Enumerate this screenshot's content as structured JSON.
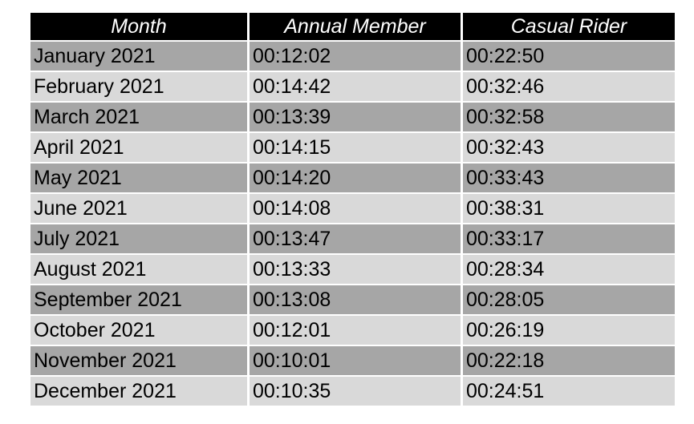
{
  "table": {
    "headers": [
      "Month",
      "Annual Member",
      "Casual Rider"
    ],
    "rows": [
      [
        "January 2021",
        "00:12:02",
        "00:22:50"
      ],
      [
        "February 2021",
        "00:14:42",
        "00:32:46"
      ],
      [
        "March 2021",
        "00:13:39",
        "00:32:58"
      ],
      [
        "April 2021",
        "00:14:15",
        "00:32:43"
      ],
      [
        "May 2021",
        "00:14:20",
        "00:33:43"
      ],
      [
        "June 2021",
        "00:14:08",
        "00:38:31"
      ],
      [
        "July 2021",
        "00:13:47",
        "00:33:17"
      ],
      [
        "August 2021",
        "00:13:33",
        "00:28:34"
      ],
      [
        "September 2021",
        "00:13:08",
        "00:28:05"
      ],
      [
        "October 2021",
        "00:12:01",
        "00:26:19"
      ],
      [
        "November 2021",
        "00:10:01",
        "00:22:18"
      ],
      [
        "December 2021",
        "00:10:35",
        "00:24:51"
      ]
    ]
  },
  "colors": {
    "header_bg": "#000000",
    "header_text": "#ffffff",
    "row_dark": "#a6a6a6",
    "row_light": "#d9d9d9"
  }
}
